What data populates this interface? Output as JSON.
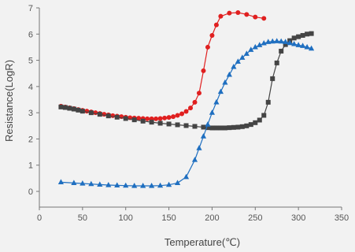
{
  "chart_data": {
    "type": "scatter",
    "xlabel": "Temperature(℃)",
    "ylabel": "Resistance(LogR)",
    "xlim": [
      0,
      350
    ],
    "ylim": [
      -0.6,
      7
    ],
    "x_ticks": [
      0,
      50,
      100,
      150,
      200,
      250,
      300,
      350
    ],
    "y_ticks": [
      0,
      1,
      2,
      3,
      4,
      5,
      6,
      7
    ],
    "grid": false,
    "legend": "none",
    "series": [
      {
        "color": "#e02020",
        "marker": "circle",
        "x": [
          25,
          30,
          35,
          40,
          45,
          50,
          55,
          60,
          65,
          70,
          75,
          80,
          85,
          90,
          95,
          100,
          105,
          110,
          115,
          120,
          125,
          130,
          135,
          140,
          145,
          150,
          155,
          160,
          165,
          170,
          175,
          180,
          185,
          190,
          195,
          200,
          205,
          210,
          220,
          230,
          240,
          250,
          260
        ],
        "y": [
          3.25,
          3.22,
          3.19,
          3.16,
          3.12,
          3.09,
          3.06,
          3.03,
          3.0,
          2.97,
          2.94,
          2.92,
          2.89,
          2.87,
          2.85,
          2.83,
          2.81,
          2.8,
          2.79,
          2.78,
          2.77,
          2.77,
          2.77,
          2.78,
          2.8,
          2.82,
          2.85,
          2.9,
          2.96,
          3.05,
          3.18,
          3.4,
          3.75,
          4.6,
          5.5,
          5.95,
          6.35,
          6.68,
          6.8,
          6.82,
          6.75,
          6.65,
          6.6
        ]
      },
      {
        "color": "#444444",
        "marker": "square",
        "x": [
          25,
          30,
          35,
          40,
          45,
          50,
          60,
          70,
          80,
          90,
          100,
          110,
          120,
          130,
          140,
          150,
          160,
          170,
          180,
          190,
          195,
          200,
          205,
          210,
          215,
          220,
          225,
          230,
          235,
          240,
          245,
          250,
          255,
          260,
          265,
          270,
          275,
          280,
          285,
          290,
          295,
          300,
          305,
          310,
          315
        ],
        "y": [
          3.22,
          3.2,
          3.17,
          3.14,
          3.1,
          3.06,
          3.0,
          2.94,
          2.88,
          2.83,
          2.78,
          2.73,
          2.68,
          2.64,
          2.6,
          2.57,
          2.54,
          2.51,
          2.48,
          2.45,
          2.43,
          2.42,
          2.42,
          2.42,
          2.42,
          2.43,
          2.44,
          2.45,
          2.47,
          2.5,
          2.55,
          2.62,
          2.72,
          2.9,
          3.4,
          4.3,
          4.9,
          5.35,
          5.6,
          5.75,
          5.85,
          5.9,
          5.95,
          6.0,
          6.02
        ]
      },
      {
        "color": "#1f6fc0",
        "marker": "triangle",
        "x": [
          25,
          40,
          50,
          60,
          70,
          80,
          90,
          100,
          110,
          120,
          130,
          140,
          150,
          160,
          170,
          180,
          185,
          190,
          195,
          200,
          205,
          210,
          215,
          220,
          225,
          230,
          235,
          240,
          245,
          250,
          255,
          260,
          265,
          270,
          275,
          280,
          285,
          290,
          295,
          300,
          305,
          310,
          315
        ],
        "y": [
          0.35,
          0.32,
          0.3,
          0.28,
          0.26,
          0.24,
          0.23,
          0.22,
          0.21,
          0.21,
          0.21,
          0.22,
          0.25,
          0.32,
          0.55,
          1.2,
          1.65,
          2.1,
          2.55,
          3.0,
          3.4,
          3.8,
          4.15,
          4.45,
          4.75,
          4.95,
          5.1,
          5.25,
          5.4,
          5.5,
          5.58,
          5.65,
          5.7,
          5.72,
          5.73,
          5.72,
          5.7,
          5.66,
          5.62,
          5.58,
          5.55,
          5.5,
          5.45
        ]
      }
    ]
  }
}
